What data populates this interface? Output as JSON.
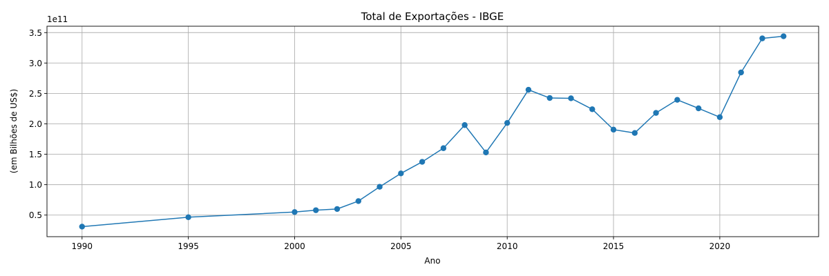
{
  "chart_data": {
    "type": "line",
    "title": "Total de Exportações - IBGE",
    "xlabel": "Ano",
    "ylabel": "(em Bilhões de US$)",
    "offset_text": "1e11",
    "x": [
      1990,
      1995,
      2000,
      2001,
      2002,
      2003,
      2004,
      2005,
      2006,
      2007,
      2008,
      2009,
      2010,
      2011,
      2012,
      2013,
      2014,
      2015,
      2016,
      2017,
      2018,
      2019,
      2020,
      2021,
      2022,
      2023
    ],
    "series": [
      {
        "color": "#1f77b4",
        "marker": "circle",
        "values": [
          0.31,
          0.465,
          0.55,
          0.58,
          0.6,
          0.73,
          0.965,
          1.185,
          1.375,
          1.6,
          1.98,
          1.53,
          2.015,
          2.56,
          2.425,
          2.42,
          2.24,
          1.905,
          1.85,
          2.18,
          2.395,
          2.255,
          2.11,
          2.845,
          3.405,
          3.44
        ]
      }
    ],
    "xticks": [
      1990,
      1995,
      2000,
      2005,
      2010,
      2015,
      2020
    ],
    "yticks": [
      0.5,
      1.0,
      1.5,
      2.0,
      2.5,
      3.0,
      3.5
    ],
    "ytick_labels": [
      "0.5",
      "1.0",
      "1.5",
      "2.0",
      "2.5",
      "3.0",
      "3.5"
    ],
    "xlim": [
      1988.35,
      2024.65
    ],
    "ylim": [
      0.145,
      3.605
    ],
    "grid": true,
    "legend": null
  }
}
